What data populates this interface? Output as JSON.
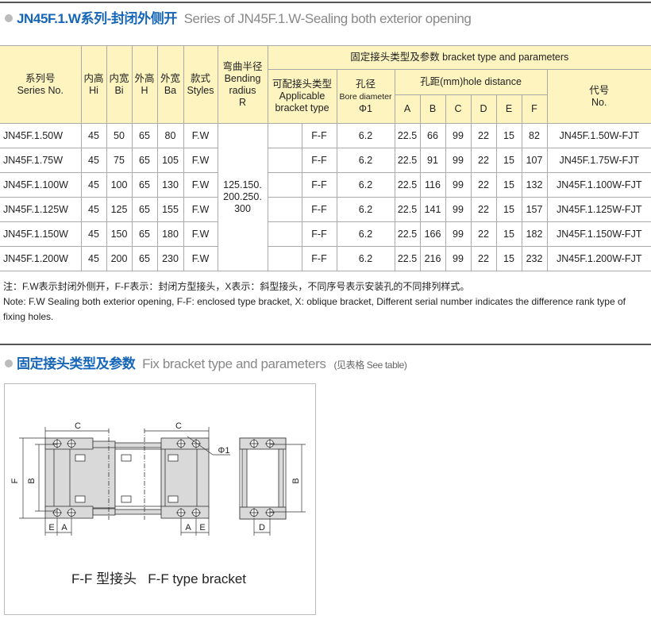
{
  "section1": {
    "title_cn": "JN45F.1.W系列-封闭外侧开",
    "title_en": "Series of JN45F.1.W-Sealing both exterior opening"
  },
  "table": {
    "headers": {
      "series_cn": "系列号",
      "series_en": "Series No.",
      "hi_cn": "内高",
      "hi": "Hi",
      "bi_cn": "内宽",
      "bi": "Bi",
      "h_cn": "外高",
      "h": "H",
      "ba_cn": "外宽",
      "ba": "Ba",
      "styles_cn": "款式",
      "styles": "Styles",
      "bend_cn": "弯曲半径",
      "bend_en1": "Bending",
      "bend_en2": "radius",
      "bend_r": "R",
      "bracket_group": "固定接头类型及参数 bracket type and parameters",
      "applicable_cn": "可配接头类型",
      "applicable_en1": "Applicable",
      "applicable_en2": "bracket type",
      "bore_cn": "孔径",
      "bore_en": "Bore diameter",
      "bore_sym": "Φ1",
      "hole_distance": "孔距(mm)hole distance",
      "A": "A",
      "B": "B",
      "C": "C",
      "D": "D",
      "E": "E",
      "F": "F",
      "code_cn": "代号",
      "code_en": "No."
    },
    "bending_radius": [
      "125.150.",
      "200.250.",
      "300"
    ],
    "rows": [
      {
        "series": "JN45F.1.50W",
        "hi": "45",
        "bi": "50",
        "h": "65",
        "ba": "80",
        "style": "F.W",
        "type": "F-F",
        "bore": "6.2",
        "A": "22.5",
        "B": "66",
        "C": "99",
        "D": "22",
        "E": "15",
        "F": "82",
        "code": "JN45F.1.50W-FJT"
      },
      {
        "series": "JN45F.1.75W",
        "hi": "45",
        "bi": "75",
        "h": "65",
        "ba": "105",
        "style": "F.W",
        "type": "F-F",
        "bore": "6.2",
        "A": "22.5",
        "B": "91",
        "C": "99",
        "D": "22",
        "E": "15",
        "F": "107",
        "code": "JN45F.1.75W-FJT"
      },
      {
        "series": "JN45F.1.100W",
        "hi": "45",
        "bi": "100",
        "h": "65",
        "ba": "130",
        "style": "F.W",
        "type": "F-F",
        "bore": "6.2",
        "A": "22.5",
        "B": "116",
        "C": "99",
        "D": "22",
        "E": "15",
        "F": "132",
        "code": "JN45F.1.100W-FJT"
      },
      {
        "series": "JN45F.1.125W",
        "hi": "45",
        "bi": "125",
        "h": "65",
        "ba": "155",
        "style": "F.W",
        "type": "F-F",
        "bore": "6.2",
        "A": "22.5",
        "B": "141",
        "C": "99",
        "D": "22",
        "E": "15",
        "F": "157",
        "code": "JN45F.1.125W-FJT"
      },
      {
        "series": "JN45F.1.150W",
        "hi": "45",
        "bi": "150",
        "h": "65",
        "ba": "180",
        "style": "F.W",
        "type": "F-F",
        "bore": "6.2",
        "A": "22.5",
        "B": "166",
        "C": "99",
        "D": "22",
        "E": "15",
        "F": "182",
        "code": "JN45F.1.150W-FJT"
      },
      {
        "series": "JN45F.1.200W",
        "hi": "45",
        "bi": "200",
        "h": "65",
        "ba": "230",
        "style": "F.W",
        "type": "F-F",
        "bore": "6.2",
        "A": "22.5",
        "B": "216",
        "C": "99",
        "D": "22",
        "E": "15",
        "F": "232",
        "code": "JN45F.1.200W-FJT"
      }
    ]
  },
  "notes": {
    "cn": "注：F.W表示封闭外侧开，F-F表示：封闭方型接头，X表示：斜型接头，不同序号表示安装孔的不同排列样式。",
    "en": "Note: F.W Sealing both exterior opening, F-F: enclosed type bracket, X: oblique bracket, Different serial number indicates the difference rank type of fixing holes."
  },
  "section2": {
    "title_cn": "固定接头类型及参数",
    "title_en": "Fix bracket type and parameters",
    "see_table": "(见表格 See table)"
  },
  "drawing": {
    "caption": "F-F 型接头   F-F type bracket",
    "labels": {
      "C": "C",
      "F": "F",
      "B": "B",
      "E": "E",
      "A": "A",
      "D": "D",
      "phi": "Φ1"
    }
  }
}
